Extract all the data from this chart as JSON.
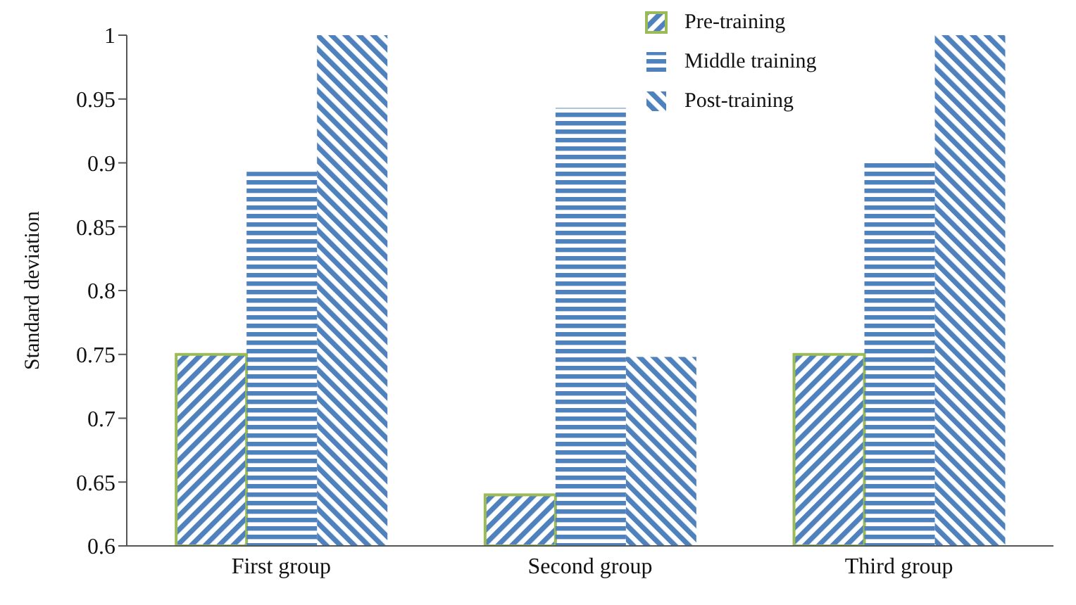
{
  "chart_data": {
    "type": "bar",
    "ylabel": "Standard deviation",
    "categories": [
      "First group",
      "Second group",
      "Third group"
    ],
    "series": [
      {
        "name": "Pre-training",
        "color": "#4f81bd",
        "values": [
          0.75,
          0.64,
          0.75
        ]
      },
      {
        "name": "Middle training",
        "color": "#4f81bd",
        "values": [
          0.893,
          0.943,
          0.9
        ]
      },
      {
        "name": "Post-training",
        "color": "#4f81bd",
        "values": [
          1,
          0.748,
          1
        ]
      }
    ],
    "ylim": [
      0.6,
      1
    ],
    "yticks": [
      0.6,
      0.65,
      0.7,
      0.75,
      0.8,
      0.85,
      0.9,
      0.95,
      1
    ],
    "grid": false,
    "legend": "top"
  }
}
